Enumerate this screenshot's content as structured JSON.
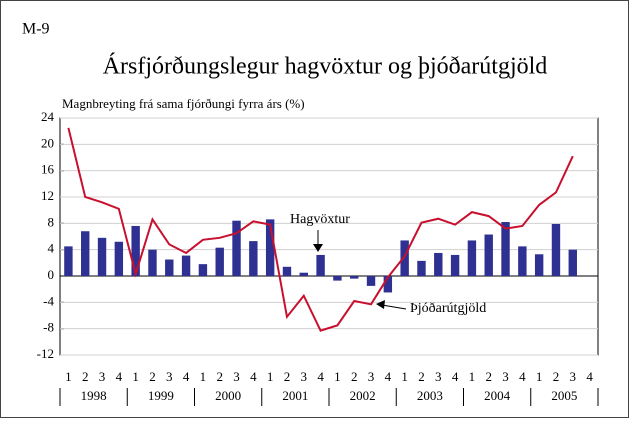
{
  "chart_data": {
    "type": "bar_line",
    "label": "M-9",
    "title": "Ársfjórðungslegur hagvöxtur og þjóðarútgjöld",
    "ylabel": "Magnbreyting frá sama fjórðungi fyrra árs (%)",
    "categories": [
      "1",
      "2",
      "3",
      "4",
      "1",
      "2",
      "3",
      "4",
      "1",
      "2",
      "3",
      "4",
      "1",
      "2",
      "3",
      "4",
      "1",
      "2",
      "3",
      "4",
      "1",
      "2",
      "3",
      "4",
      "1",
      "2",
      "3",
      "4",
      "1",
      "2",
      "3",
      "4"
    ],
    "years": [
      "1998",
      "1999",
      "2000",
      "2001",
      "2002",
      "2003",
      "2004",
      "2005"
    ],
    "series": [
      {
        "name": "Hagvöxtur",
        "color": "#2e3192",
        "values": [
          4.5,
          6.8,
          5.8,
          5.2,
          7.6,
          4.0,
          2.5,
          3.1,
          1.8,
          4.3,
          8.4,
          5.3,
          8.6,
          1.4,
          0.5,
          3.2,
          -0.7,
          -0.4,
          -1.5,
          -2.5,
          5.4,
          2.3,
          3.5,
          3.2,
          5.4,
          6.3,
          8.2,
          4.5,
          3.3,
          7.9,
          4.0,
          null
        ]
      },
      {
        "name": "Þjóðarútgjöld",
        "color": "#c8102e",
        "values": [
          22.5,
          12.0,
          11.2,
          10.2,
          0.3,
          8.6,
          4.8,
          3.5,
          5.5,
          5.8,
          6.5,
          8.3,
          7.8,
          -6.2,
          -3.0,
          -8.3,
          -7.5,
          -3.8,
          -4.3,
          -0.2,
          3.0,
          8.1,
          8.7,
          7.8,
          9.7,
          9.1,
          7.2,
          7.6,
          10.8,
          12.7,
          18.2,
          null
        ]
      }
    ],
    "ylim": [
      -12,
      24
    ],
    "yticks": [
      -12,
      -8,
      -4,
      0,
      4,
      8,
      12,
      16,
      20,
      24
    ],
    "grid": true
  }
}
